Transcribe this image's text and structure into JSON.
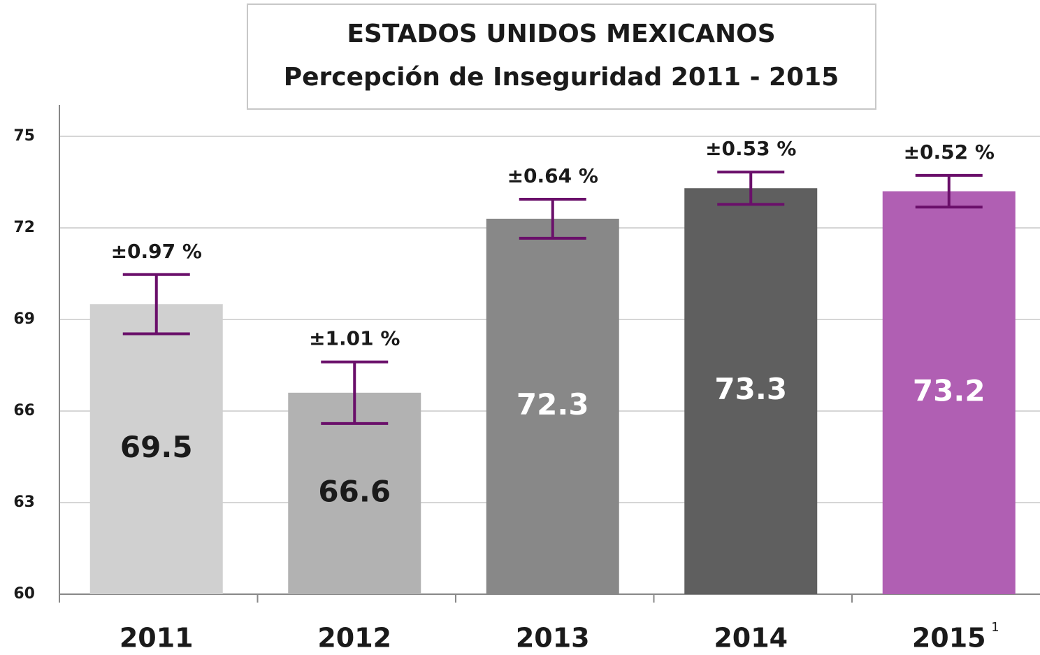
{
  "chart_data": {
    "type": "bar",
    "title": "ESTADOS UNIDOS MEXICANOS",
    "subtitle": "Percepción de Inseguridad 2011 - 2015",
    "categories": [
      "2011",
      "2012",
      "2013",
      "2014",
      "2015"
    ],
    "values": [
      69.5,
      66.6,
      72.3,
      73.3,
      73.2
    ],
    "colors": [
      "#d0d0d0",
      "#b2b2b2",
      "#888888",
      "#5f5f5f",
      "#b05fb3"
    ],
    "value_label_colors": [
      "#1a1a1a",
      "#1a1a1a",
      "#ffffff",
      "#ffffff",
      "#ffffff"
    ],
    "errors": [
      0.97,
      1.01,
      0.64,
      0.53,
      0.52
    ],
    "error_labels": [
      "±0.97 %",
      "±1.01 %",
      "±0.64 %",
      "±0.53 %",
      "±0.52 %"
    ],
    "error_color": "#6a0f6a",
    "footnote": "1",
    "ylim": [
      60,
      75
    ],
    "yticks": [
      60,
      63,
      66,
      69,
      72,
      75
    ],
    "grid": true
  }
}
